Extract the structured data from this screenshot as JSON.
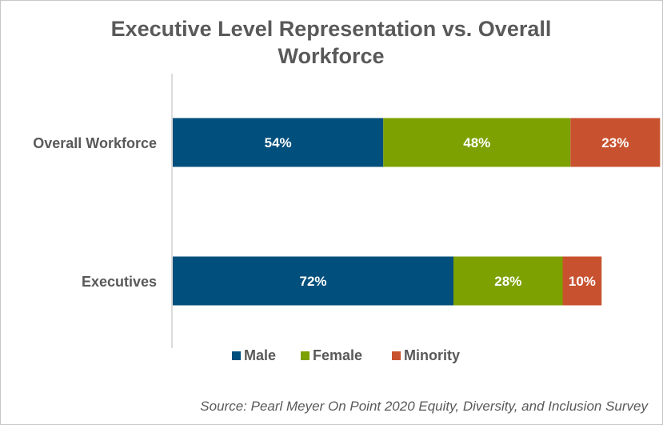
{
  "chart_data": {
    "type": "bar",
    "orientation": "horizontal",
    "stacked": true,
    "title": "Executive Level Representation vs. Overall Workforce",
    "title_lines": [
      "Executive Level Representation vs. Overall",
      "Workforce"
    ],
    "categories": [
      "Overall Workforce",
      "Executives"
    ],
    "series": [
      {
        "name": "Male",
        "color": "#004f7c",
        "values": [
          54,
          72
        ],
        "labels": [
          "54%",
          "72%"
        ]
      },
      {
        "name": "Female",
        "color": "#7da100",
        "values": [
          48,
          28
        ],
        "labels": [
          "48%",
          "28%"
        ]
      },
      {
        "name": "Minority",
        "color": "#c8522f",
        "values": [
          23,
          10
        ],
        "labels": [
          "23%",
          "10%"
        ]
      }
    ],
    "value_unit": "%",
    "xlim": [
      0,
      160
    ],
    "grid": false,
    "legend": "bottom",
    "xlabel": "",
    "ylabel": "",
    "source": "Source: Pearl Meyer On Point 2020 Equity, Diversity, and Inclusion Survey"
  }
}
